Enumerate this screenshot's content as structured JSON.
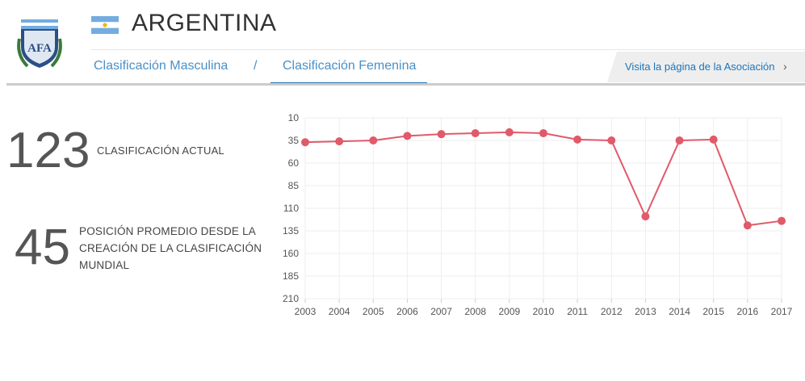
{
  "header": {
    "country": "ARGENTINA",
    "tabs": [
      {
        "label": "Clasificación Masculina"
      },
      {
        "label": "/"
      },
      {
        "label": "Clasificación Femenina"
      }
    ],
    "association_link": "Visita la página de la Asociación",
    "chevron": "›",
    "crest_text": "AFA"
  },
  "stats": {
    "current_rank": "123",
    "current_label": "CLASIFICACIÓN ACTUAL",
    "average_rank": "45",
    "average_label": "POSICIÓN PROMEDIO DESDE LA CREACIÓN DE LA CLASIFICACIÓN MUNDIAL"
  },
  "colors": {
    "accent": "#1b75bb",
    "line": "#e05a6a",
    "flag_blue": "#74acdf"
  },
  "chart_data": {
    "type": "line",
    "title": "",
    "xlabel": "",
    "ylabel": "",
    "inverted_y": true,
    "ylim": [
      10,
      210
    ],
    "yticks": [
      10,
      35,
      60,
      85,
      110,
      135,
      160,
      185,
      210
    ],
    "x": [
      "2003",
      "2004",
      "2005",
      "2006",
      "2007",
      "2008",
      "2009",
      "2010",
      "2011",
      "2012",
      "2013",
      "2014",
      "2015",
      "2016",
      "2017"
    ],
    "series": [
      {
        "name": "Argentina",
        "values": [
          37,
          36,
          35,
          30,
          28,
          27,
          26,
          27,
          34,
          35,
          119,
          35,
          34,
          129,
          124
        ]
      }
    ]
  }
}
